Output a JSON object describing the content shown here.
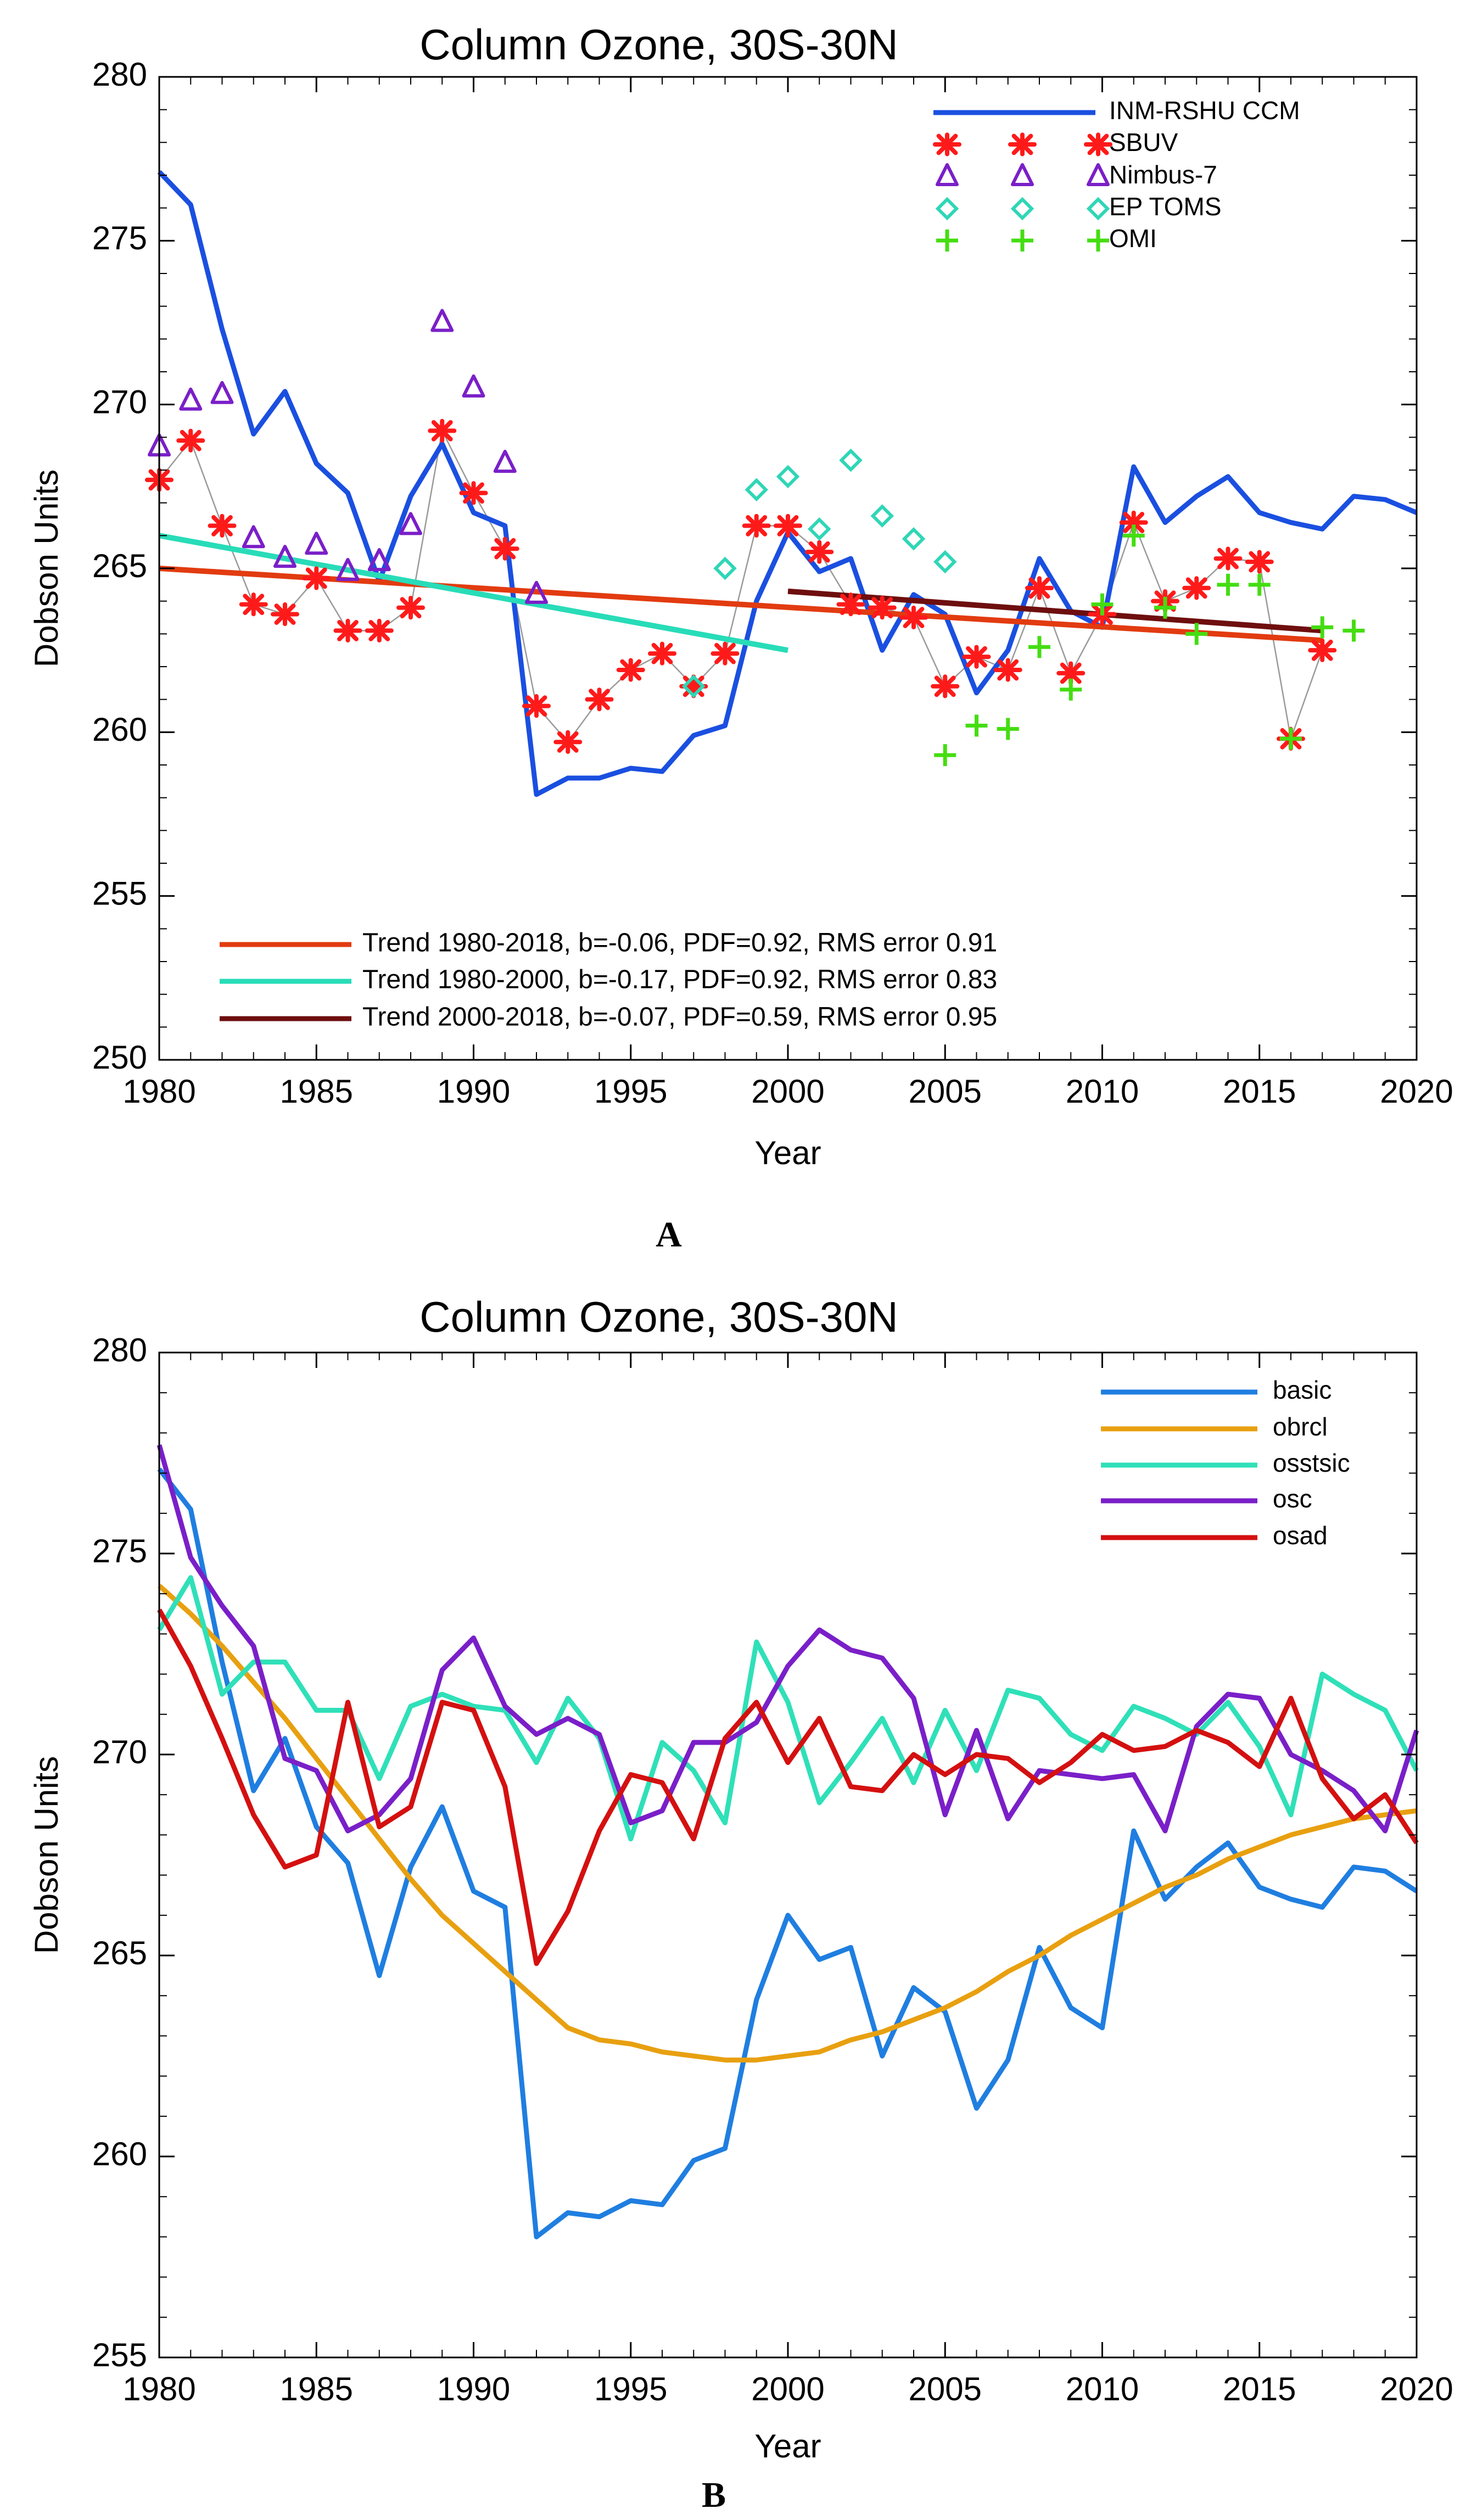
{
  "colors": {
    "model": "#1a4fe0",
    "sbuv": "#ff1a1a",
    "nimbus": "#7a1fc8",
    "eptoms": "#2fd6b6",
    "omi": "#44dd11",
    "obsline": "#9a9a9a",
    "trend1": "#e23b10",
    "trend2": "#28dcb8",
    "trend3": "#6e0e0e",
    "basic": "#1f7ee0",
    "obrcl": "#e8a010",
    "osstsic": "#2fe0b8",
    "osc": "#7a1fc8",
    "osad": "#d41010"
  },
  "panels": {
    "a": {
      "label": "A"
    },
    "b": {
      "label": "B"
    }
  },
  "chart_data": [
    {
      "id": "A",
      "type": "line",
      "title": "Column Ozone, 30S-30N",
      "xlabel": "Year",
      "ylabel": "Dobson Units",
      "xlim": [
        1980,
        2020
      ],
      "ylim": [
        250,
        280
      ],
      "xticks": [
        1980,
        1985,
        1990,
        1995,
        2000,
        2005,
        2010,
        2015,
        2020
      ],
      "yticks": [
        250,
        255,
        260,
        265,
        270,
        275,
        280
      ],
      "series": [
        {
          "name": "INM-RSHU CCM",
          "kind": "line",
          "color_key": "model",
          "x": [
            1980,
            1981,
            1982,
            1983,
            1984,
            1985,
            1986,
            1987,
            1988,
            1989,
            1990,
            1991,
            1992,
            1993,
            1994,
            1995,
            1996,
            1997,
            1998,
            1999,
            2000,
            2001,
            2002,
            2003,
            2004,
            2005,
            2006,
            2007,
            2008,
            2009,
            2010,
            2011,
            2012,
            2013,
            2014,
            2015,
            2016,
            2017,
            2018,
            2019,
            2020
          ],
          "y": [
            277.1,
            276.1,
            272.3,
            269.1,
            270.4,
            268.2,
            267.3,
            264.6,
            267.2,
            268.8,
            266.7,
            266.3,
            258.1,
            258.6,
            258.6,
            258.9,
            258.8,
            259.9,
            260.2,
            264.0,
            266.1,
            264.9,
            265.3,
            262.5,
            264.2,
            263.6,
            261.2,
            262.5,
            265.3,
            263.7,
            263.2,
            268.1,
            266.4,
            267.2,
            267.8,
            266.7,
            266.4,
            266.2,
            267.2,
            267.1,
            266.7
          ]
        },
        {
          "name": "SBUV",
          "kind": "marker",
          "marker": "asterisk",
          "color_key": "sbuv",
          "connect": true,
          "x": [
            1980,
            1981,
            1982,
            1983,
            1984,
            1985,
            1986,
            1987,
            1988,
            1989,
            1990,
            1991,
            1992,
            1993,
            1994,
            1995,
            1996,
            1997,
            1998,
            1999,
            2000,
            2001,
            2002,
            2003,
            2004,
            2005,
            2006,
            2007,
            2008,
            2009,
            2010,
            2011,
            2012,
            2013,
            2014,
            2015,
            2016,
            2017
          ],
          "y": [
            267.7,
            268.9,
            266.3,
            263.9,
            263.6,
            264.7,
            263.1,
            263.1,
            263.8,
            269.2,
            267.3,
            265.6,
            260.8,
            259.7,
            261.0,
            261.9,
            262.4,
            261.4,
            262.4,
            266.3,
            266.3,
            265.5,
            263.9,
            263.8,
            263.5,
            261.4,
            262.3,
            261.9,
            264.4,
            261.8,
            263.6,
            266.4,
            264.0,
            264.4,
            265.3,
            265.2,
            259.8,
            262.5
          ]
        },
        {
          "name": "Nimbus-7",
          "kind": "marker",
          "marker": "triangle",
          "color_key": "nimbus",
          "x": [
            1980,
            1981,
            1982,
            1983,
            1984,
            1985,
            1986,
            1987,
            1988,
            1989,
            1990,
            1991,
            1992
          ],
          "y": [
            268.7,
            270.1,
            270.3,
            265.9,
            265.3,
            265.7,
            264.9,
            265.2,
            266.3,
            272.5,
            270.5,
            268.2,
            264.2
          ]
        },
        {
          "name": "EP TOMS",
          "kind": "marker",
          "marker": "diamond",
          "color_key": "eptoms",
          "x": [
            1997,
            1998,
            1999,
            2000,
            2001,
            2002,
            2003,
            2004,
            2005
          ],
          "y": [
            261.4,
            265.0,
            267.4,
            267.8,
            266.2,
            268.3,
            266.6,
            265.9,
            265.2
          ]
        },
        {
          "name": "OMI",
          "kind": "marker",
          "marker": "plus",
          "color_key": "omi",
          "x": [
            2005,
            2006,
            2007,
            2008,
            2009,
            2010,
            2011,
            2012,
            2013,
            2014,
            2015,
            2016,
            2017,
            2018
          ],
          "y": [
            259.3,
            260.2,
            260.1,
            262.6,
            261.3,
            263.9,
            266.0,
            263.8,
            263.0,
            264.5,
            264.5,
            259.8,
            263.2,
            263.1
          ]
        },
        {
          "name": "Trend 1980-2018, b=-0.06, PDF=0.92, RMS error 0.91",
          "kind": "trend",
          "color_key": "trend1",
          "x": [
            1980,
            2017
          ],
          "y": [
            265.0,
            262.8
          ]
        },
        {
          "name": "Trend 1980-2000, b=-0.17, PDF=0.92, RMS error 0.83",
          "kind": "trend",
          "color_key": "trend2",
          "x": [
            1980,
            2000
          ],
          "y": [
            266.0,
            262.5
          ]
        },
        {
          "name": "Trend 2000-2018, b=-0.07, PDF=0.59, RMS error 0.95",
          "kind": "trend",
          "color_key": "trend3",
          "x": [
            2000,
            2017
          ],
          "y": [
            264.3,
            263.1
          ]
        }
      ]
    },
    {
      "id": "B",
      "type": "line",
      "title": "Column Ozone, 30S-30N",
      "xlabel": "Year",
      "ylabel": "Dobson Units",
      "xlim": [
        1980,
        2020
      ],
      "ylim": [
        255,
        280
      ],
      "xticks": [
        1980,
        1985,
        1990,
        1995,
        2000,
        2005,
        2010,
        2015,
        2020
      ],
      "yticks": [
        255,
        260,
        265,
        270,
        275,
        280
      ],
      "series": [
        {
          "name": "basic",
          "kind": "line",
          "color_key": "basic",
          "x": [
            1980,
            1981,
            1982,
            1983,
            1984,
            1985,
            1986,
            1987,
            1988,
            1989,
            1990,
            1991,
            1992,
            1993,
            1994,
            1995,
            1996,
            1997,
            1998,
            1999,
            2000,
            2001,
            2002,
            2003,
            2004,
            2005,
            2006,
            2007,
            2008,
            2009,
            2010,
            2011,
            2012,
            2013,
            2014,
            2015,
            2016,
            2017,
            2018,
            2019,
            2020
          ],
          "y": [
            277.1,
            276.1,
            272.3,
            269.1,
            270.4,
            268.2,
            267.3,
            264.5,
            267.2,
            268.7,
            266.6,
            266.2,
            258.0,
            258.6,
            258.5,
            258.9,
            258.8,
            259.9,
            260.2,
            263.9,
            266.0,
            264.9,
            265.2,
            262.5,
            264.2,
            263.6,
            261.2,
            262.4,
            265.2,
            263.7,
            263.2,
            268.1,
            266.4,
            267.2,
            267.8,
            266.7,
            266.4,
            266.2,
            267.2,
            267.1,
            266.6
          ]
        },
        {
          "name": "obrcl",
          "kind": "line",
          "color_key": "obrcl",
          "x": [
            1980,
            1981,
            1982,
            1983,
            1984,
            1985,
            1986,
            1987,
            1988,
            1989,
            1990,
            1991,
            1992,
            1993,
            1994,
            1995,
            1996,
            1997,
            1998,
            1999,
            2000,
            2001,
            2002,
            2003,
            2004,
            2005,
            2006,
            2007,
            2008,
            2009,
            2010,
            2011,
            2012,
            2013,
            2014,
            2015,
            2016,
            2017,
            2018,
            2019,
            2020
          ],
          "y": [
            274.2,
            273.5,
            272.7,
            271.8,
            270.9,
            269.9,
            268.9,
            267.9,
            266.9,
            266.0,
            265.3,
            264.6,
            263.9,
            263.2,
            262.9,
            262.8,
            262.6,
            262.5,
            262.4,
            262.4,
            262.5,
            262.6,
            262.9,
            263.1,
            263.4,
            263.7,
            264.1,
            264.6,
            265.0,
            265.5,
            265.9,
            266.3,
            266.7,
            267.0,
            267.4,
            267.7,
            268.0,
            268.2,
            268.4,
            268.5,
            268.6
          ]
        },
        {
          "name": "osstsic",
          "kind": "line",
          "color_key": "osstsic",
          "x": [
            1980,
            1981,
            1982,
            1983,
            1984,
            1985,
            1986,
            1987,
            1988,
            1989,
            1990,
            1991,
            1992,
            1993,
            1994,
            1995,
            1996,
            1997,
            1998,
            1999,
            2000,
            2001,
            2002,
            2003,
            2004,
            2005,
            2006,
            2007,
            2008,
            2009,
            2010,
            2011,
            2012,
            2013,
            2014,
            2015,
            2016,
            2017,
            2018,
            2019,
            2020
          ],
          "y": [
            273.1,
            274.4,
            271.5,
            272.3,
            272.3,
            271.1,
            271.1,
            269.4,
            271.2,
            271.5,
            271.2,
            271.1,
            269.8,
            271.4,
            270.4,
            267.9,
            270.3,
            269.6,
            268.3,
            272.8,
            271.3,
            268.8,
            269.8,
            270.9,
            269.3,
            271.1,
            269.6,
            271.6,
            271.4,
            270.5,
            270.1,
            271.2,
            270.9,
            270.5,
            271.3,
            270.2,
            268.5,
            272.0,
            271.5,
            271.1,
            269.6
          ]
        },
        {
          "name": "osc",
          "kind": "line",
          "color_key": "osc",
          "x": [
            1980,
            1981,
            1982,
            1983,
            1984,
            1985,
            1986,
            1987,
            1988,
            1989,
            1990,
            1991,
            1992,
            1993,
            1994,
            1995,
            1996,
            1997,
            1998,
            1999,
            2000,
            2001,
            2002,
            2003,
            2004,
            2005,
            2006,
            2007,
            2008,
            2009,
            2010,
            2011,
            2012,
            2013,
            2014,
            2015,
            2016,
            2017,
            2018,
            2019,
            2020
          ],
          "y": [
            277.7,
            274.9,
            273.7,
            272.7,
            269.9,
            269.6,
            268.1,
            268.5,
            269.4,
            272.1,
            272.9,
            271.2,
            270.5,
            270.9,
            270.5,
            268.3,
            268.6,
            270.3,
            270.3,
            270.8,
            272.2,
            273.1,
            272.6,
            272.4,
            271.4,
            268.5,
            270.6,
            268.4,
            269.6,
            269.5,
            269.4,
            269.5,
            268.1,
            270.7,
            271.5,
            271.4,
            270.0,
            269.6,
            269.1,
            268.1,
            270.6
          ]
        },
        {
          "name": "osad",
          "kind": "line",
          "color_key": "osad",
          "x": [
            1980,
            1981,
            1982,
            1983,
            1984,
            1985,
            1986,
            1987,
            1988,
            1989,
            1990,
            1991,
            1992,
            1993,
            1994,
            1995,
            1996,
            1997,
            1998,
            1999,
            2000,
            2001,
            2002,
            2003,
            2004,
            2005,
            2006,
            2007,
            2008,
            2009,
            2010,
            2011,
            2012,
            2013,
            2014,
            2015,
            2016,
            2017,
            2018,
            2019,
            2020
          ],
          "y": [
            273.6,
            272.2,
            270.4,
            268.5,
            267.2,
            267.5,
            271.3,
            268.2,
            268.7,
            271.3,
            271.1,
            269.2,
            264.8,
            266.1,
            268.1,
            269.5,
            269.3,
            267.9,
            270.4,
            271.3,
            269.8,
            270.9,
            269.2,
            269.1,
            270.0,
            269.5,
            270.0,
            269.9,
            269.3,
            269.8,
            270.5,
            270.1,
            270.2,
            270.6,
            270.3,
            269.7,
            271.4,
            269.4,
            268.4,
            269.0,
            267.8
          ]
        }
      ]
    }
  ]
}
